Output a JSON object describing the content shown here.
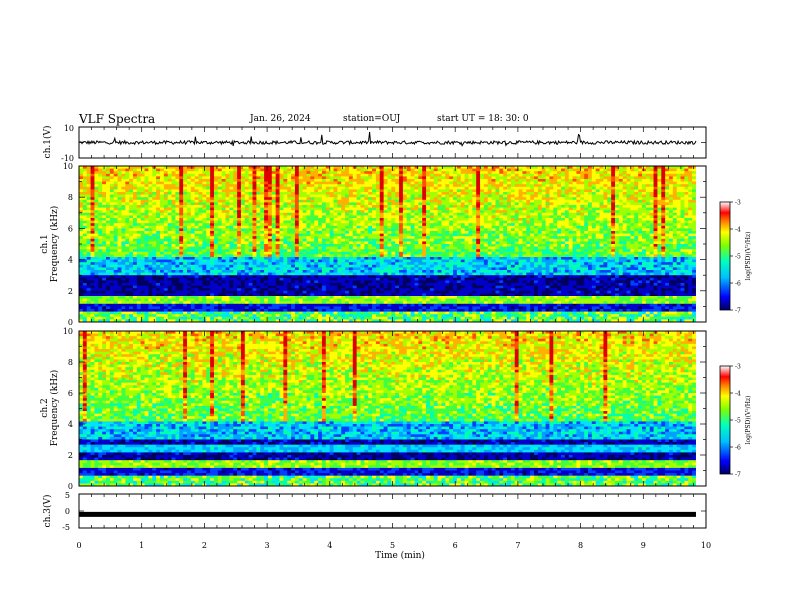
{
  "header": {
    "title": "VLF Spectra",
    "date": "Jan. 26, 2024",
    "station": "station=OUJ",
    "start": "start UT =  18: 30: 0"
  },
  "chart_data": [
    {
      "type": "line",
      "panel": "ch1-waveform",
      "ylabel": "ch.1(V)",
      "ylim": [
        -10,
        10
      ],
      "yticks": [
        "10",
        "-10"
      ],
      "xlim": [
        0,
        10
      ],
      "baseline": 0,
      "description_values": "noisy waveform around 0 V with occasional spikes reaching ~5 V",
      "color": "#000000"
    },
    {
      "type": "heatmap",
      "panel": "ch1-spectrogram",
      "ylabel_line1": "ch.1",
      "ylabel_line2": "Frequency (kHz)",
      "ylim": [
        0,
        10
      ],
      "yticks": [
        "0",
        "2",
        "4",
        "6",
        "8",
        "10"
      ],
      "xlim": [
        0,
        10
      ],
      "colorbar": {
        "label": "log(PSD)(V²/Hz)",
        "range": [
          -7,
          -3
        ],
        "ticks": [
          "-3",
          "-4",
          "-5",
          "-6",
          "-7"
        ]
      }
    },
    {
      "type": "heatmap",
      "panel": "ch2-spectrogram",
      "ylabel_line1": "ch.2",
      "ylabel_line2": "Frequency (kHz)",
      "ylim": [
        0,
        10
      ],
      "yticks": [
        "0",
        "2",
        "4",
        "6",
        "8",
        "10"
      ],
      "xlim": [
        0,
        10
      ],
      "colorbar": {
        "label": "log(PSD)(V²/Hz)",
        "range": [
          -7,
          -3
        ],
        "ticks": [
          "-3",
          "-4",
          "-5",
          "-6",
          "-7"
        ]
      }
    },
    {
      "type": "line",
      "panel": "ch3-waveform",
      "ylabel": "ch.3(V)",
      "ylim": [
        -5,
        5
      ],
      "yticks": [
        "5",
        "0",
        "-5"
      ],
      "xlim": [
        0,
        10
      ],
      "xlabel": "Time (min)",
      "xticks": [
        "0",
        "1",
        "2",
        "3",
        "4",
        "5",
        "6",
        "7",
        "8",
        "9",
        "10"
      ],
      "level": -1.0,
      "color": "#000000"
    }
  ],
  "colors": {
    "ink": "#000000",
    "colormap": [
      "#00008f",
      "#0000ff",
      "#00bfff",
      "#00ffcc",
      "#7fff00",
      "#ffff00",
      "#ff7f00",
      "#ff0000",
      "#ffffff"
    ]
  }
}
